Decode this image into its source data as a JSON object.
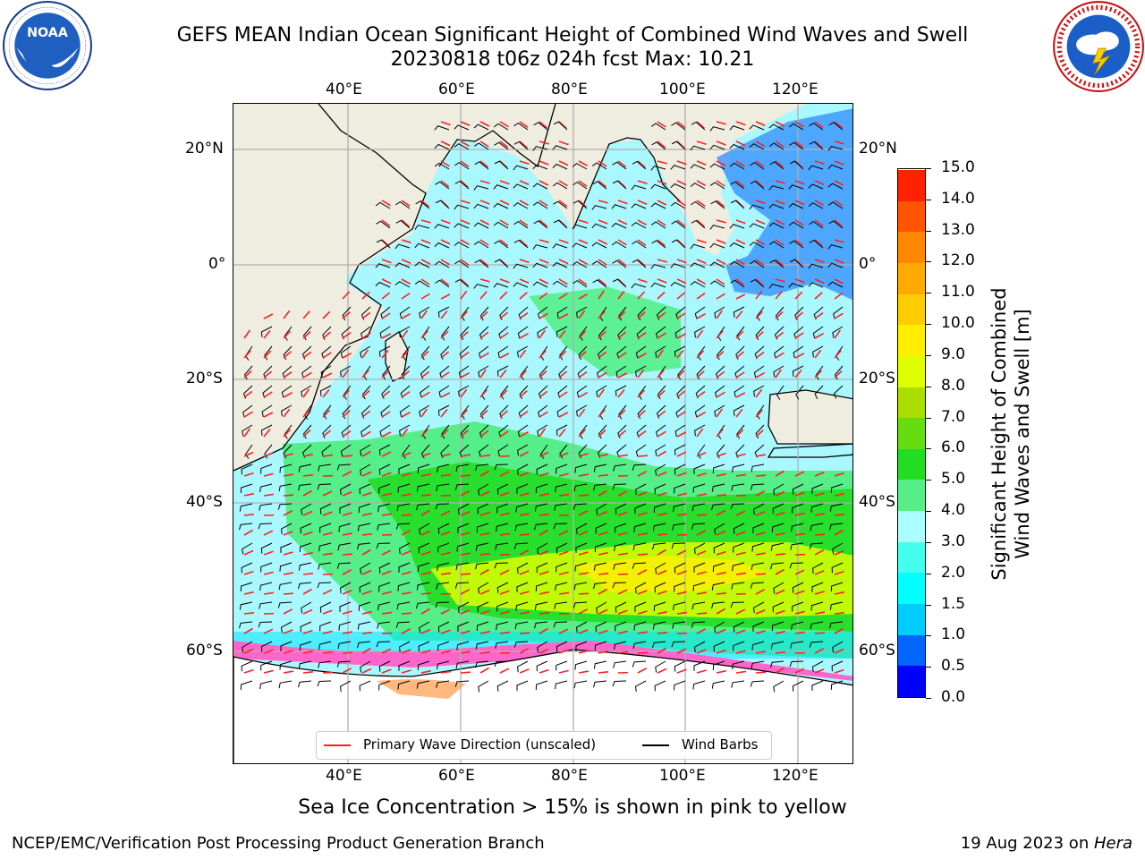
{
  "title": {
    "line1": "GEFS MEAN Indian Ocean Significant Height of Combined Wind Waves and Swell",
    "line2": "20230818 t06z 024h fcst   Max: 10.21"
  },
  "logos": {
    "noaa": {
      "text": "NOAA",
      "ring_text": "NATIONAL OCEANIC AND ATMOSPHERIC ADMINISTRATION · U.S. DEPARTMENT OF COMMERCE"
    },
    "nws": {
      "ring_text": "NATIONAL WEATHER SERVICE"
    }
  },
  "map": {
    "lon_labels_top": [
      "40°E",
      "60°E",
      "80°E",
      "100°E",
      "120°E"
    ],
    "lon_labels_bottom": [
      "40°E",
      "60°E",
      "80°E",
      "100°E",
      "120°E"
    ],
    "lat_labels_left": [
      "20°N",
      "0°",
      "20°S",
      "40°S",
      "60°S"
    ],
    "lat_labels_right": [
      "20°N",
      "0°",
      "20°S",
      "40°S",
      "60°S"
    ],
    "colors": {
      "land": "#efeddf",
      "ocean_low": "#aaf8ff",
      "arrow": "#ff2020",
      "barb": "#000000",
      "ice": "#ff66cc"
    }
  },
  "colorbar": {
    "title_line1": "Significant Height of Combined",
    "title_line2": "Wind Waves and Swell [m]",
    "ticks": [
      "0.0",
      "0.5",
      "1.0",
      "1.5",
      "2.0",
      "3.0",
      "4.0",
      "5.0",
      "6.0",
      "7.0",
      "8.0",
      "9.0",
      "10.0",
      "11.0",
      "12.0",
      "13.0",
      "14.0",
      "15.0"
    ],
    "colors": [
      "#0000ff",
      "#0066ff",
      "#00ccff",
      "#00ffff",
      "#44ffee",
      "#aaffff",
      "#55ee88",
      "#22dd22",
      "#66dd11",
      "#aadd00",
      "#ddff00",
      "#ffee00",
      "#ffcc00",
      "#ffaa00",
      "#ff8800",
      "#ff5500",
      "#ff2200"
    ]
  },
  "legend": {
    "wave_dir": "Primary Wave Direction (unscaled)",
    "wind_barbs": "Wind Barbs"
  },
  "footer": {
    "note": "Sea Ice Concentration > 15% is shown in pink to yellow",
    "left": "NCEP/EMC/Verification Post Processing Product Generation Branch",
    "date": "19 Aug 2023 on ",
    "host": "Hera"
  }
}
